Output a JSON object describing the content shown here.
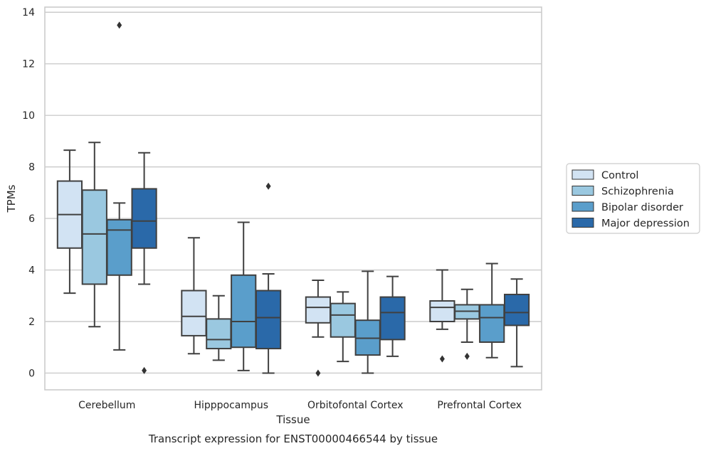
{
  "chart_data": {
    "type": "box",
    "title": "",
    "xlabel": "Tissue",
    "ylabel": "TPMs",
    "caption": "Transcript expression for ENST00000466544 by tissue",
    "ylim": [
      -0.65,
      14.2
    ],
    "yticks": [
      0,
      2,
      4,
      6,
      8,
      10,
      12,
      14
    ],
    "grid": "horizontal",
    "legend_position": "right",
    "categories": [
      "Cerebellum",
      "Hipppocampus",
      "Orbitofontal Cortex",
      "Prefrontal Cortex"
    ],
    "series": [
      {
        "name": "Control",
        "color": "#d2e3f3",
        "boxes": [
          {
            "whislo": 3.1,
            "q1": 4.85,
            "med": 6.15,
            "q3": 7.45,
            "whishi": 8.65,
            "fliers": []
          },
          {
            "whislo": 0.75,
            "q1": 1.45,
            "med": 2.2,
            "q3": 3.2,
            "whishi": 5.25,
            "fliers": []
          },
          {
            "whislo": 1.4,
            "q1": 1.95,
            "med": 2.55,
            "q3": 2.95,
            "whishi": 3.6,
            "fliers": [
              0.0
            ]
          },
          {
            "whislo": 1.7,
            "q1": 2.0,
            "med": 2.55,
            "q3": 2.8,
            "whishi": 4.0,
            "fliers": [
              0.55
            ]
          }
        ]
      },
      {
        "name": "Schizophrenia",
        "color": "#9ac8e0",
        "boxes": [
          {
            "whislo": 1.8,
            "q1": 3.45,
            "med": 5.4,
            "q3": 7.1,
            "whishi": 8.95,
            "fliers": []
          },
          {
            "whislo": 0.5,
            "q1": 0.95,
            "med": 1.3,
            "q3": 2.1,
            "whishi": 3.0,
            "fliers": []
          },
          {
            "whislo": 0.45,
            "q1": 1.4,
            "med": 2.25,
            "q3": 2.7,
            "whishi": 3.15,
            "fliers": []
          },
          {
            "whislo": 1.2,
            "q1": 2.1,
            "med": 2.4,
            "q3": 2.65,
            "whishi": 3.25,
            "fliers": [
              0.65
            ]
          }
        ]
      },
      {
        "name": "Bipolar disorder",
        "color": "#5a9ecb",
        "boxes": [
          {
            "whislo": 0.9,
            "q1": 3.8,
            "med": 5.55,
            "q3": 5.95,
            "whishi": 6.6,
            "fliers": [
              13.5
            ]
          },
          {
            "whislo": 0.1,
            "q1": 1.0,
            "med": 2.0,
            "q3": 3.8,
            "whishi": 5.85,
            "fliers": []
          },
          {
            "whislo": 0.0,
            "q1": 0.7,
            "med": 1.35,
            "q3": 2.05,
            "whishi": 3.95,
            "fliers": []
          },
          {
            "whislo": 0.6,
            "q1": 1.2,
            "med": 2.15,
            "q3": 2.65,
            "whishi": 4.25,
            "fliers": []
          }
        ]
      },
      {
        "name": "Major depression",
        "color": "#2a69a9",
        "boxes": [
          {
            "whislo": 3.45,
            "q1": 4.85,
            "med": 5.9,
            "q3": 7.15,
            "whishi": 8.55,
            "fliers": [
              0.1
            ]
          },
          {
            "whislo": 0.0,
            "q1": 0.95,
            "med": 2.15,
            "q3": 3.2,
            "whishi": 3.85,
            "fliers": [
              7.25
            ]
          },
          {
            "whislo": 0.65,
            "q1": 1.3,
            "med": 2.35,
            "q3": 2.95,
            "whishi": 3.75,
            "fliers": []
          },
          {
            "whislo": 0.25,
            "q1": 1.85,
            "med": 2.35,
            "q3": 3.05,
            "whishi": 3.65,
            "fliers": []
          }
        ]
      }
    ]
  }
}
